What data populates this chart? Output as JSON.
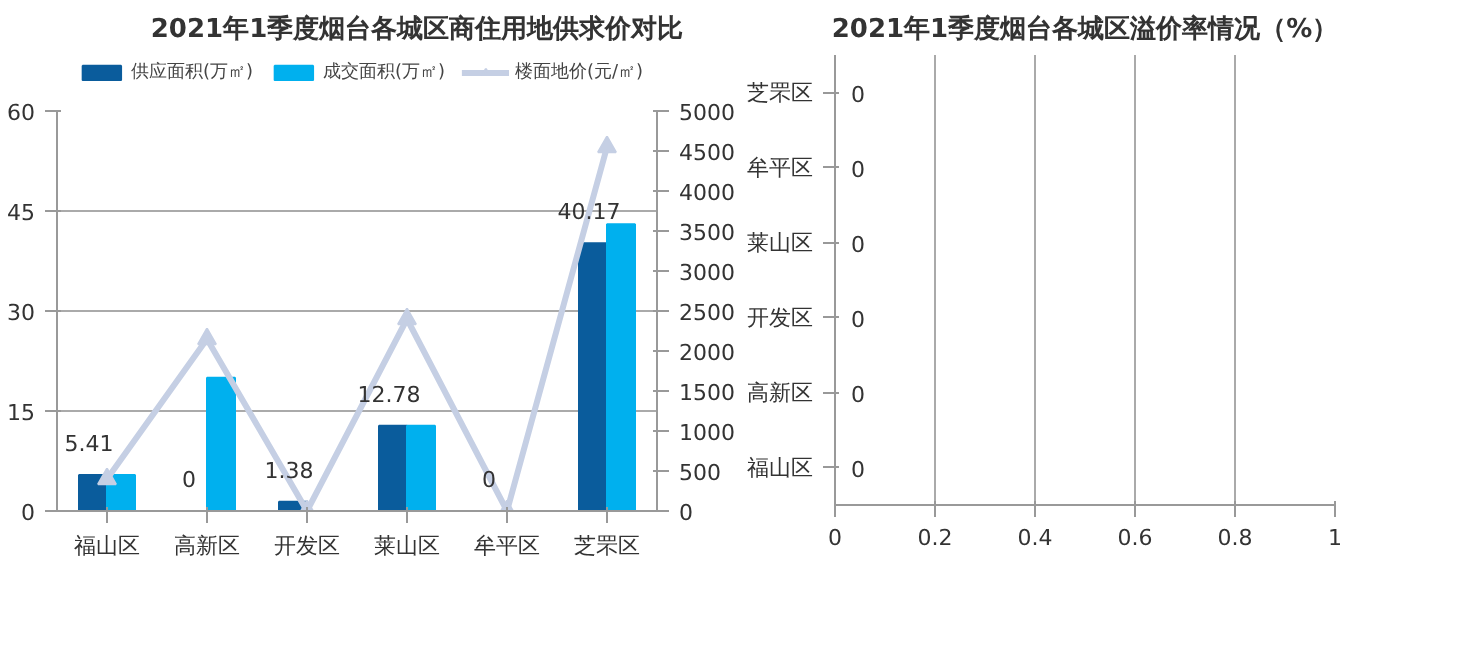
{
  "chart_data": [
    {
      "type": "bar",
      "title": "2021年1季度烟台各城区商住用地供求价对比",
      "categories": [
        "福山区",
        "高新区",
        "开发区",
        "莱山区",
        "牟平区",
        "芝罘区"
      ],
      "series": [
        {
          "name": "供应面积(万㎡)",
          "color": "#0a5c9c",
          "values": [
            5.41,
            0,
            1.38,
            12.78,
            0,
            40.17
          ],
          "value_labels": [
            "5.41",
            "0",
            "1.38",
            "12.78",
            "0",
            "40.17"
          ]
        },
        {
          "name": "成交面积(万㎡)",
          "color": "#00b0ee",
          "values": [
            5.4,
            20,
            0,
            12.8,
            0,
            43
          ]
        },
        {
          "name": "楼面地价(元/㎡)",
          "type": "line",
          "axis": "y2",
          "marker": "triangle",
          "color": "#c5cfe4",
          "values": [
            400,
            2150,
            0,
            2400,
            0,
            4550
          ]
        }
      ],
      "ylim": [
        0,
        60
      ],
      "yticks": [
        0,
        15,
        30,
        45,
        60
      ],
      "y2lim": [
        0,
        5000
      ],
      "y2ticks": [
        0,
        500,
        1000,
        1500,
        2000,
        2500,
        3000,
        3500,
        4000,
        4500,
        5000
      ],
      "grid": "y",
      "legend": "top"
    },
    {
      "type": "bar",
      "orientation": "horizontal",
      "title": "2021年1季度烟台各城区溢价率情况（%）",
      "categories": [
        "芝罘区",
        "牟平区",
        "莱山区",
        "开发区",
        "高新区",
        "福山区"
      ],
      "values": [
        0,
        0,
        0,
        0,
        0,
        0
      ],
      "data_labels": true,
      "xlim": [
        0,
        1
      ],
      "xticks": [
        0,
        0.2,
        0.4,
        0.6,
        0.8,
        1
      ],
      "grid": "x"
    }
  ]
}
